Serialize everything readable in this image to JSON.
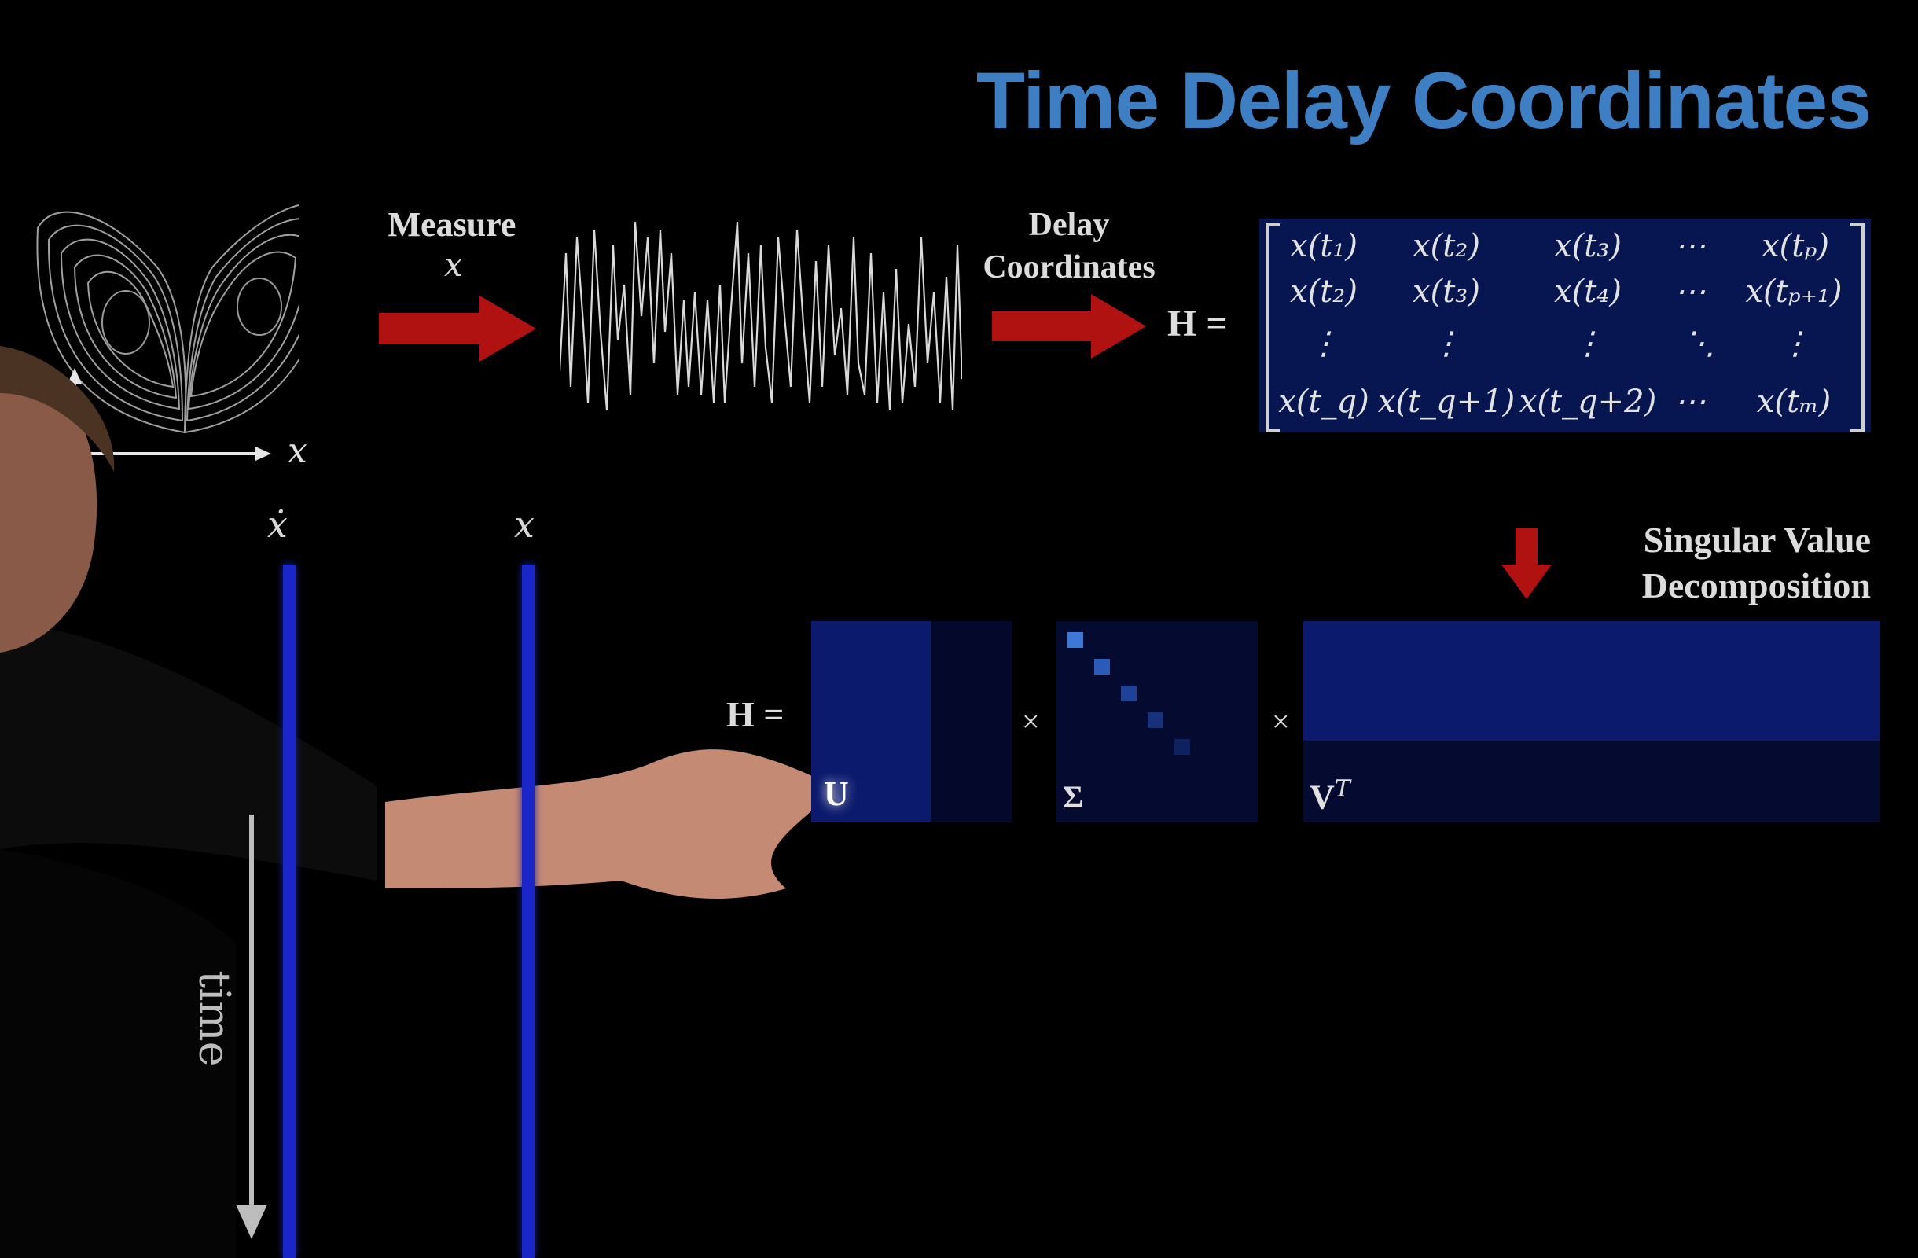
{
  "title": "Time Delay Coordinates",
  "measure": {
    "label": "Measure",
    "var": "x"
  },
  "delay": {
    "line1": "Delay",
    "line2": "Coordinates"
  },
  "attractor": {
    "axis_label": "x"
  },
  "h_matrix": {
    "lhs": "H =",
    "rows": [
      [
        "x(t₁)",
        "x(t₂)",
        "x(t₃)",
        "⋯",
        "x(tₚ)"
      ],
      [
        "x(t₂)",
        "x(t₃)",
        "x(t₄)",
        "⋯",
        "x(tₚ₊₁)"
      ],
      [
        "⋮",
        "⋮",
        "⋮",
        "⋱",
        "⋮"
      ],
      [
        "x(t_q)",
        "x(t_q+1)",
        "x(t_q+2)",
        "⋯",
        "x(tₘ)"
      ]
    ]
  },
  "svd": {
    "label_line1": "Singular Value",
    "label_line2": "Decomposition",
    "lhs": "H =",
    "times": "×",
    "u": "U",
    "sigma": "Σ",
    "vt": "V",
    "vt_sup": "T"
  },
  "columns": {
    "xdot": "ẋ",
    "x": "x"
  },
  "time_label": "time",
  "colors": {
    "title": "#3d7fc2",
    "arrow": "#b01212",
    "matrix_bg": "#071650",
    "bar": "#1a26c8"
  }
}
